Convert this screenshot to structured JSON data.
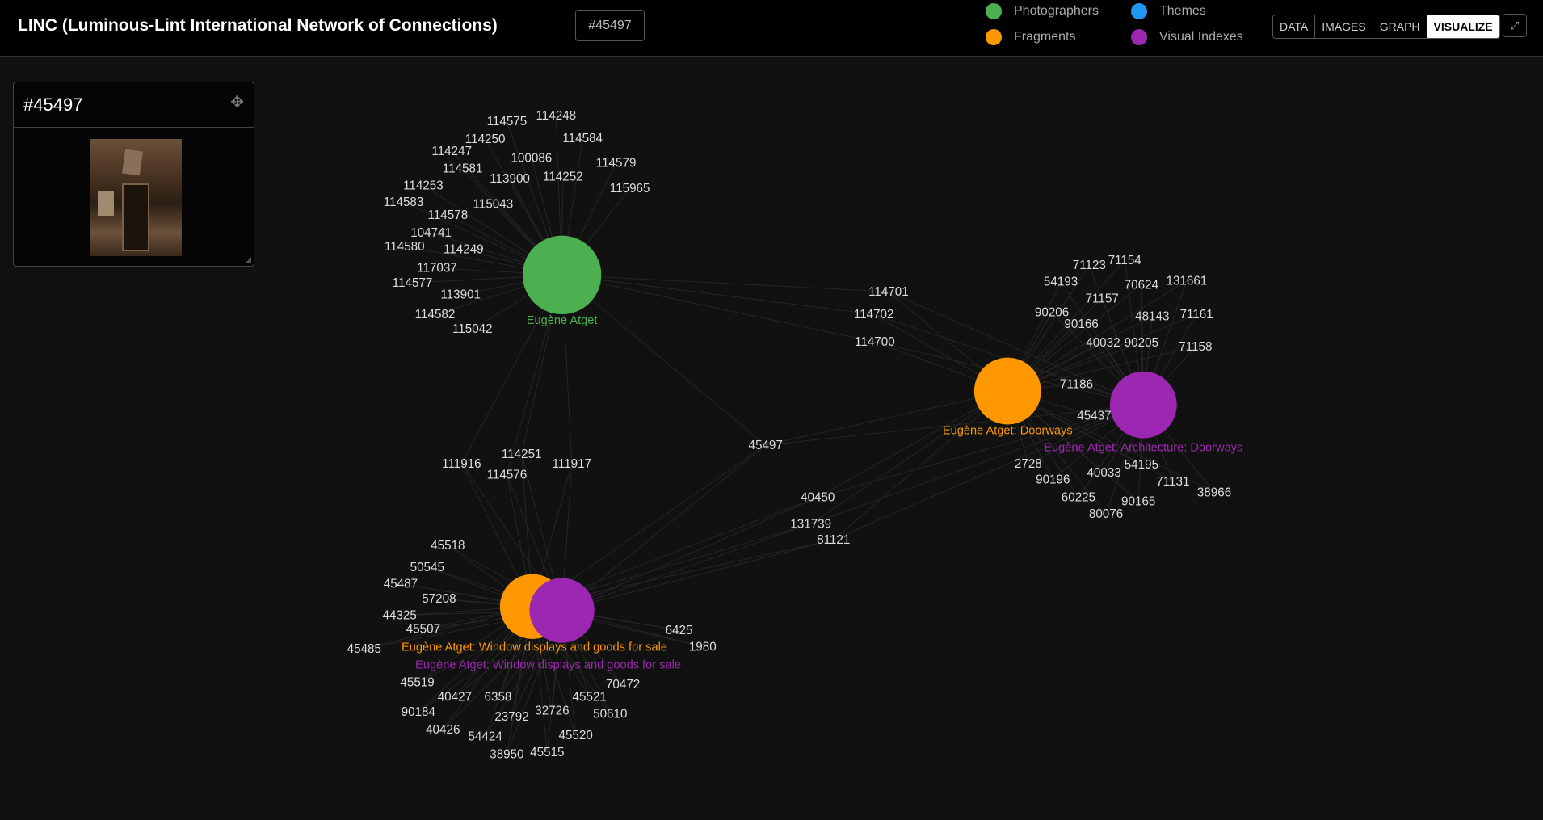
{
  "header": {
    "title": "LINC (Luminous-Lint International Network of Connections)",
    "search_badge": "#45497",
    "legend": [
      {
        "label": "Photographers",
        "color": "#4caf50"
      },
      {
        "label": "Themes",
        "color": "#2196f3"
      },
      {
        "label": "Fragments",
        "color": "#ff9800"
      },
      {
        "label": "Visual Indexes",
        "color": "#9c27b0"
      }
    ],
    "view_buttons": [
      {
        "label": "DATA",
        "active": false
      },
      {
        "label": "IMAGES",
        "active": false
      },
      {
        "label": "GRAPH",
        "active": false
      },
      {
        "label": "VISUALIZE",
        "active": true
      }
    ],
    "fullscreen_icon": "expand-icon"
  },
  "panel": {
    "title": "#45497",
    "move_icon": "move-arrows-icon"
  },
  "graph": {
    "hubs": [
      {
        "id": "photographer",
        "label": "Eugène Atget",
        "category": "Photographers",
        "color": "#4caf50"
      },
      {
        "id": "frag-doorways",
        "label": "Eugène Atget: Doorways",
        "category": "Fragments",
        "color": "#ff9800"
      },
      {
        "id": "vi-doorways",
        "label": "Eugène Atget: Architecture: Doorways",
        "category": "Visual Indexes",
        "color": "#9c27b0"
      },
      {
        "id": "frag-window",
        "label": "Eugène Atget: Window displays and goods for sale",
        "category": "Fragments",
        "color": "#ff9800"
      },
      {
        "id": "vi-window",
        "label": "Eugène Atget: Window displays and goods for sale",
        "category": "Visual Indexes",
        "color": "#9c27b0"
      }
    ],
    "node_groups": [
      {
        "links": [
          "photographer"
        ],
        "nodes": [
          "114575",
          "114248",
          "114250",
          "114584",
          "114247",
          "100086",
          "114252",
          "114579",
          "114581",
          "113900",
          "114253",
          "115965",
          "114583",
          "114578",
          "115043",
          "104741",
          "114580",
          "114249",
          "117037",
          "114577",
          "113901",
          "114582",
          "115042"
        ]
      },
      {
        "links": [
          "photographer",
          "frag-window",
          "vi-window"
        ],
        "nodes": [
          "114251",
          "111916",
          "114576",
          "111917"
        ]
      },
      {
        "links": [
          "photographer",
          "frag-doorways",
          "vi-doorways"
        ],
        "nodes": [
          "114701",
          "114702",
          "114700"
        ]
      },
      {
        "links": [
          "frag-doorways",
          "vi-doorways"
        ],
        "nodes": [
          "71123",
          "71154",
          "54193",
          "70624",
          "131661",
          "71157",
          "90206",
          "90166",
          "48143",
          "71161",
          "40032",
          "90205",
          "71158",
          "71186",
          "45437",
          "2728",
          "54195",
          "40033",
          "71131",
          "38966",
          "90196",
          "60225",
          "90165",
          "80076"
        ]
      },
      {
        "links": [
          "frag-doorways",
          "vi-doorways",
          "frag-window",
          "vi-window",
          "photographer"
        ],
        "nodes": [
          "45497"
        ]
      },
      {
        "links": [
          "frag-doorways",
          "vi-doorways",
          "frag-window",
          "vi-window"
        ],
        "nodes": [
          "40450",
          "131739",
          "81121"
        ]
      },
      {
        "links": [
          "frag-window",
          "vi-window"
        ],
        "nodes": [
          "45518",
          "50545",
          "45487",
          "57208",
          "44325",
          "45507",
          "45485",
          "6425",
          "1980",
          "45519",
          "40427",
          "6358",
          "90184",
          "70472",
          "45521",
          "23792",
          "32726",
          "50610",
          "40426",
          "54424",
          "45520",
          "38950",
          "45515"
        ]
      }
    ]
  }
}
